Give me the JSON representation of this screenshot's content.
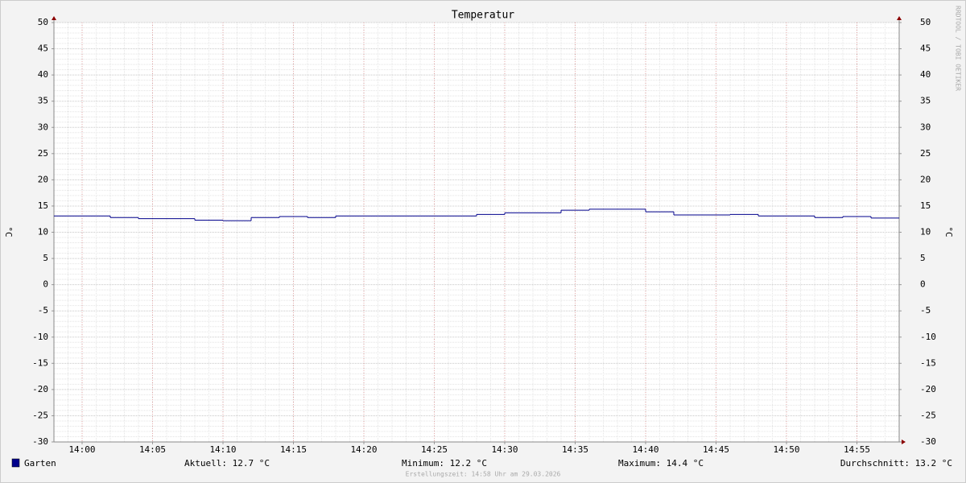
{
  "chart_data": {
    "type": "line",
    "title": "Temperatur",
    "y_label": "°C",
    "y2_label": "°C",
    "watermark": "RRDTOOL / TOBI OETIKER",
    "x": [
      "13:58",
      "14:02",
      "14:04",
      "14:08",
      "14:10",
      "14:12",
      "14:14",
      "14:16",
      "14:18",
      "14:28",
      "14:30",
      "14:34",
      "14:36",
      "14:40",
      "14:42",
      "14:46",
      "14:48",
      "14:52",
      "14:54",
      "14:56"
    ],
    "series": [
      {
        "name": "Garten",
        "color": "#00008b",
        "values": [
          13.1,
          12.8,
          12.6,
          12.3,
          12.2,
          12.8,
          13.0,
          12.8,
          13.1,
          13.4,
          13.7,
          14.2,
          14.4,
          13.9,
          13.3,
          13.4,
          13.1,
          12.8,
          13.0,
          12.7
        ]
      }
    ],
    "xlim": [
      "13:58",
      "14:58"
    ],
    "xticks": [
      "14:00",
      "14:05",
      "14:10",
      "14:15",
      "14:20",
      "14:25",
      "14:30",
      "14:35",
      "14:40",
      "14:45",
      "14:50",
      "14:55"
    ],
    "ylim": [
      -30,
      50
    ],
    "yticks": [
      -30,
      -25,
      -20,
      -15,
      -10,
      -5,
      0,
      5,
      10,
      15,
      20,
      25,
      30,
      35,
      40,
      45,
      50
    ],
    "y2lim": [
      -30,
      50
    ],
    "y2ticks": [
      -30,
      -25,
      -20,
      -15,
      -10,
      -5,
      0,
      5,
      10,
      15,
      20,
      25,
      30,
      35,
      40,
      45,
      50
    ],
    "grid": true,
    "stats": [
      "Aktuell: 12.7 °C",
      "Minimum: 12.2 °C",
      "Maximum: 14.4 °C",
      "Durchschnitt: 13.2 °C"
    ],
    "footer": "Erstellungszeit: 14:58 Uhr am 29.03.2026"
  }
}
